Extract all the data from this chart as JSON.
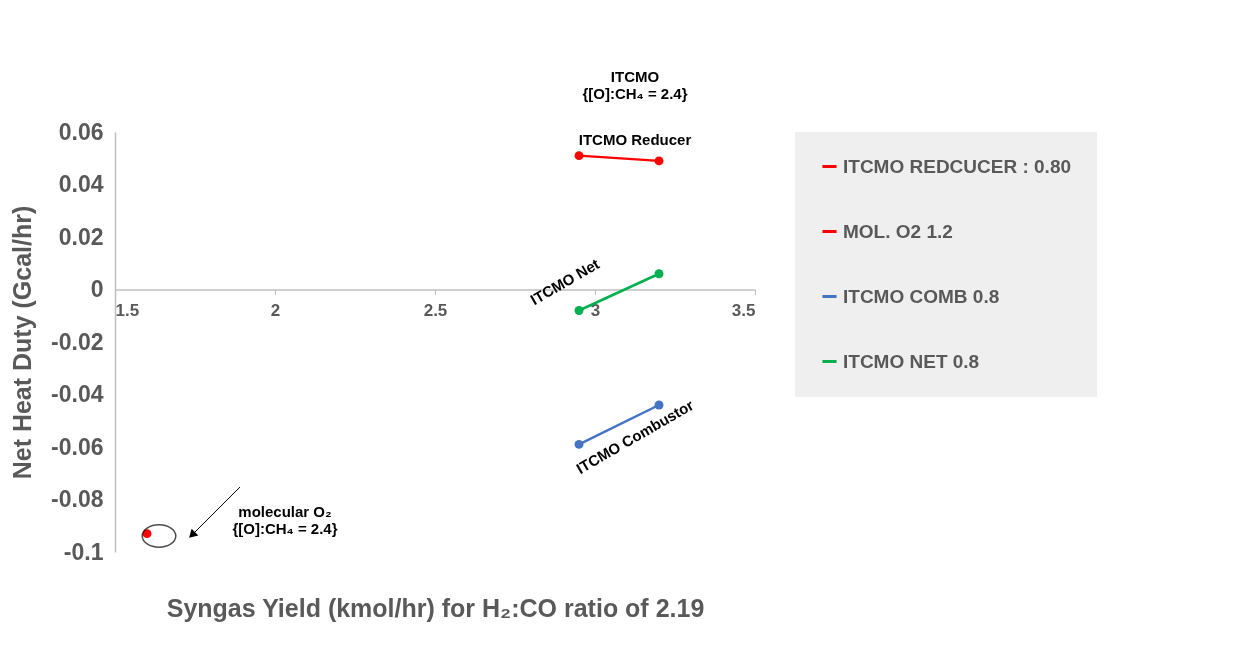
{
  "chart_data": {
    "type": "line",
    "xlabel": "Syngas Yield (kmol/hr) for H₂:CO ratio of 2.19",
    "ylabel": "Net Heat Duty (Gcal/hr)",
    "xlim": [
      1.5,
      3.5
    ],
    "xticks": [
      1.5,
      2,
      2.5,
      3,
      3.5
    ],
    "ylim": [
      -0.1,
      0.06
    ],
    "yticks": [
      -0.1,
      -0.08,
      -0.06,
      -0.04,
      -0.02,
      0,
      0.02,
      0.04,
      0.06
    ],
    "grid": false,
    "legend": "right",
    "marker": "circle",
    "line_style": "solid",
    "series": [
      {
        "name": "ITCMO REDCUCER : 0.80",
        "color": "#ff0000",
        "x": [
          2.95,
          3.2
        ],
        "values": [
          0.051,
          0.049
        ]
      },
      {
        "name": "MOL. O2 1.2",
        "color": "#ff0000",
        "x": [
          1.6
        ],
        "values": [
          -0.093
        ]
      },
      {
        "name": "ITCMO COMB 0.8",
        "color": "#4472c4",
        "x": [
          2.95,
          3.2
        ],
        "values": [
          -0.059,
          -0.044
        ]
      },
      {
        "name": "ITCMO NET 0.8",
        "color": "#00b050",
        "x": [
          2.95,
          3.2
        ],
        "values": [
          -0.008,
          0.006
        ]
      }
    ],
    "annotations": [
      "ITCMO\n{[O]:CH₄ = 2.4}",
      "ITCMO Reducer",
      "ITCMO Net",
      "ITCMO Combustor",
      "molecular O₂\n{[O]:CH₄ = 2.4}"
    ]
  }
}
